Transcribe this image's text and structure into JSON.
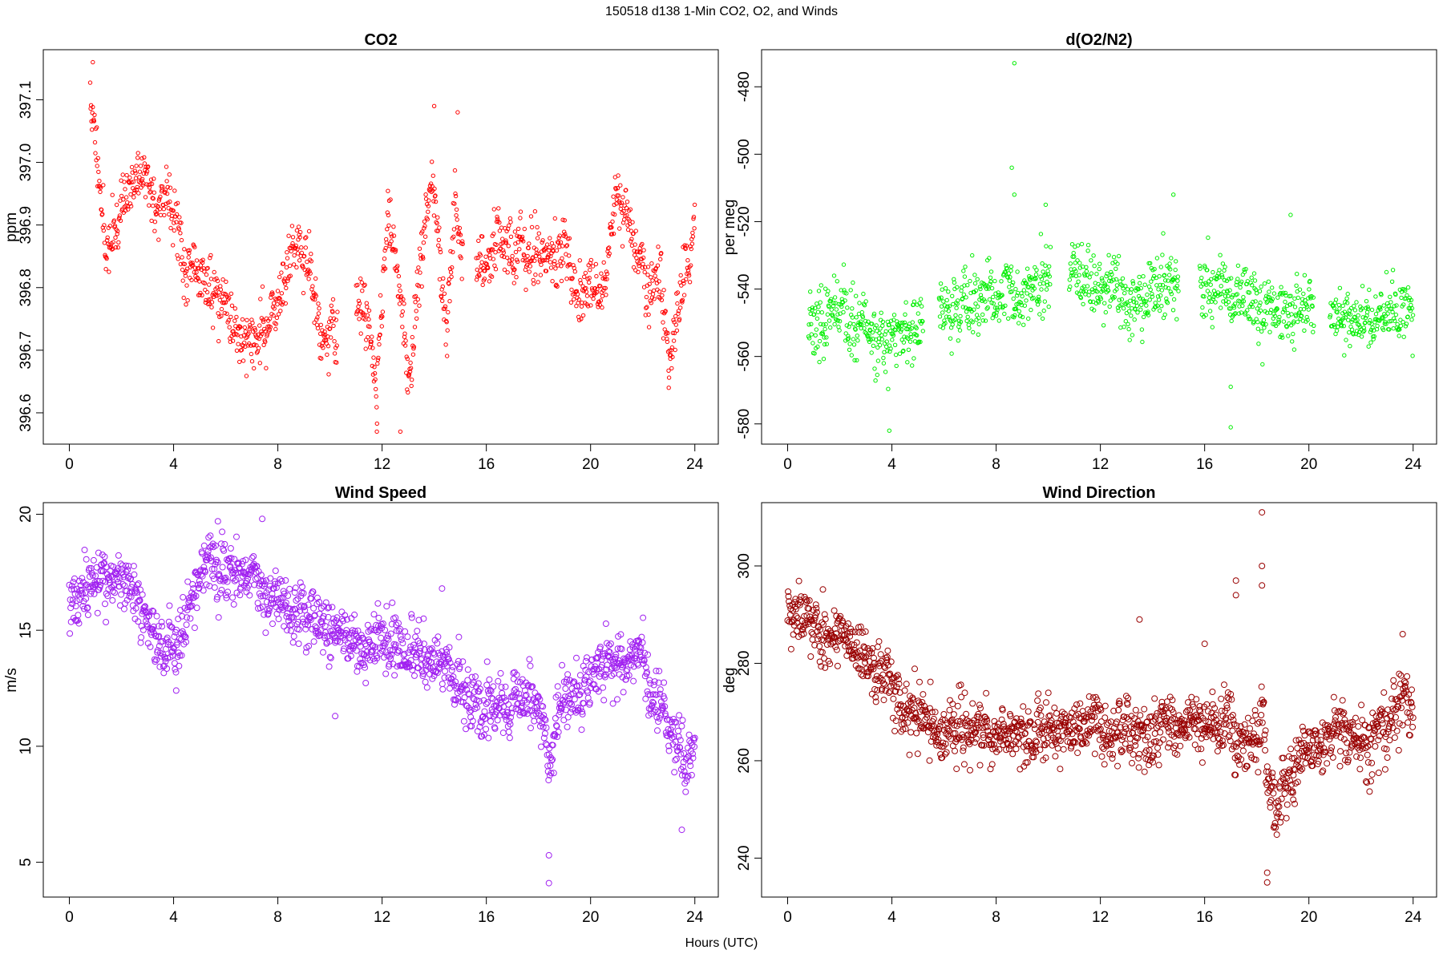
{
  "figure": {
    "title": "150518   d138   1-Min CO2, O2, and Winds",
    "xlabel": "Hours (UTC)"
  },
  "chart_data": [
    {
      "type": "scatter",
      "title": "CO2",
      "xlabel": "",
      "ylabel": "ppm",
      "xlim": [
        -1,
        24.9
      ],
      "ylim": [
        396.55,
        397.18
      ],
      "xticks": [
        0,
        4,
        8,
        12,
        16,
        20,
        24
      ],
      "yticks": [
        396.6,
        396.7,
        396.8,
        396.9,
        397.0,
        397.1
      ],
      "ytick_labels": [
        "396.6",
        "396.7",
        "396.8",
        "396.9",
        "397.0",
        "397.1"
      ],
      "color": "#ff0000",
      "gaps": [
        [
          10.3,
          11.0
        ],
        [
          15.1,
          15.6
        ]
      ],
      "trend": [
        [
          0.8,
          397.1
        ],
        [
          1.2,
          396.97
        ],
        [
          1.4,
          396.85
        ],
        [
          1.8,
          396.9
        ],
        [
          2.2,
          396.95
        ],
        [
          2.8,
          396.99
        ],
        [
          3.3,
          396.92
        ],
        [
          3.8,
          396.96
        ],
        [
          4.2,
          396.9
        ],
        [
          4.5,
          396.81
        ],
        [
          5.0,
          396.83
        ],
        [
          5.6,
          396.79
        ],
        [
          6.0,
          396.77
        ],
        [
          6.5,
          396.73
        ],
        [
          7.0,
          396.71
        ],
        [
          7.5,
          396.73
        ],
        [
          8.0,
          396.78
        ],
        [
          8.4,
          396.83
        ],
        [
          8.8,
          396.88
        ],
        [
          9.2,
          396.82
        ],
        [
          9.6,
          396.74
        ],
        [
          10.2,
          396.71
        ],
        [
          11.0,
          396.78
        ],
        [
          11.5,
          396.76
        ],
        [
          11.8,
          396.63
        ],
        [
          12.2,
          396.92
        ],
        [
          12.6,
          396.82
        ],
        [
          13.0,
          396.63
        ],
        [
          13.5,
          396.86
        ],
        [
          13.9,
          396.98
        ],
        [
          14.2,
          396.85
        ],
        [
          14.5,
          396.7
        ],
        [
          14.8,
          396.96
        ],
        [
          15.0,
          396.88
        ],
        [
          15.8,
          396.82
        ],
        [
          16.3,
          396.88
        ],
        [
          17.0,
          396.87
        ],
        [
          17.8,
          396.86
        ],
        [
          18.5,
          396.84
        ],
        [
          19.0,
          396.87
        ],
        [
          19.5,
          396.78
        ],
        [
          20.0,
          396.8
        ],
        [
          20.5,
          396.78
        ],
        [
          21.0,
          396.95
        ],
        [
          21.4,
          396.92
        ],
        [
          21.8,
          396.86
        ],
        [
          22.2,
          396.8
        ],
        [
          22.7,
          396.79
        ],
        [
          23.0,
          396.7
        ],
        [
          23.4,
          396.79
        ],
        [
          23.8,
          396.83
        ],
        [
          24.0,
          396.92
        ]
      ],
      "noise": 0.03,
      "outliers": [
        [
          0.9,
          397.16
        ],
        [
          11.8,
          396.57
        ],
        [
          12.7,
          396.57
        ],
        [
          14.0,
          397.09
        ],
        [
          14.9,
          397.08
        ],
        [
          23.0,
          396.64
        ]
      ],
      "seed": 11,
      "spacing": 0.0167,
      "marker_r": 2.2
    },
    {
      "type": "scatter",
      "title": "d(O2/N2)",
      "xlabel": "",
      "ylabel": "per meg",
      "xlim": [
        -1,
        24.9
      ],
      "ylim": [
        -586,
        -469
      ],
      "xticks": [
        0,
        4,
        8,
        12,
        16,
        20,
        24
      ],
      "yticks": [
        -580,
        -560,
        -540,
        -520,
        -500,
        -480
      ],
      "ytick_labels": [
        "-580",
        "-560",
        "-540",
        "-520",
        "-500",
        "-480"
      ],
      "color": "#00ee00",
      "gaps": [
        [
          5.2,
          5.8
        ],
        [
          10.1,
          10.8
        ],
        [
          15.0,
          15.8
        ],
        [
          20.2,
          20.8
        ]
      ],
      "trend": [
        [
          0.8,
          -548
        ],
        [
          2.0,
          -550
        ],
        [
          3.0,
          -553
        ],
        [
          4.0,
          -555
        ],
        [
          5.0,
          -552
        ],
        [
          6.0,
          -546
        ],
        [
          7.0,
          -544
        ],
        [
          8.0,
          -544
        ],
        [
          9.0,
          -542
        ],
        [
          10.0,
          -540
        ],
        [
          11.0,
          -539
        ],
        [
          12.0,
          -540
        ],
        [
          13.0,
          -542
        ],
        [
          14.0,
          -541
        ],
        [
          15.0,
          -540
        ],
        [
          16.0,
          -541
        ],
        [
          17.0,
          -542
        ],
        [
          18.0,
          -544
        ],
        [
          19.0,
          -545
        ],
        [
          20.0,
          -544
        ],
        [
          21.0,
          -547
        ],
        [
          22.0,
          -550
        ],
        [
          23.0,
          -548
        ],
        [
          24.0,
          -546
        ]
      ],
      "noise": 6,
      "outliers": [
        [
          8.7,
          -473
        ],
        [
          8.6,
          -504
        ],
        [
          8.7,
          -512
        ],
        [
          9.9,
          -515
        ],
        [
          14.8,
          -512
        ],
        [
          3.9,
          -582
        ],
        [
          17.0,
          -581
        ],
        [
          17.0,
          -569
        ],
        [
          19.3,
          -518
        ]
      ],
      "seed": 23,
      "spacing": 0.0167,
      "marker_r": 2.2
    },
    {
      "type": "scatter",
      "title": "Wind Speed",
      "xlabel": "",
      "ylabel": "m/s",
      "xlim": [
        -1,
        24.9
      ],
      "ylim": [
        3.5,
        20.5
      ],
      "xticks": [
        0,
        4,
        8,
        12,
        16,
        20,
        24
      ],
      "yticks": [
        5,
        10,
        15,
        20
      ],
      "ytick_labels": [
        "5",
        "10",
        "15",
        "20"
      ],
      "color": "#a020f0",
      "gaps": [],
      "trend": [
        [
          0.0,
          16.0
        ],
        [
          0.5,
          16.5
        ],
        [
          1.0,
          17.6
        ],
        [
          2.0,
          17.0
        ],
        [
          2.5,
          16.2
        ],
        [
          3.0,
          15.2
        ],
        [
          3.5,
          14.4
        ],
        [
          4.0,
          14.2
        ],
        [
          4.5,
          16.0
        ],
        [
          5.0,
          17.5
        ],
        [
          6.0,
          17.8
        ],
        [
          7.0,
          17.5
        ],
        [
          8.0,
          16.3
        ],
        [
          9.0,
          15.8
        ],
        [
          10.0,
          14.8
        ],
        [
          11.0,
          14.5
        ],
        [
          12.0,
          14.5
        ],
        [
          13.0,
          14.0
        ],
        [
          14.0,
          13.8
        ],
        [
          15.0,
          12.7
        ],
        [
          15.5,
          11.4
        ],
        [
          16.5,
          11.2
        ],
        [
          17.0,
          11.8
        ],
        [
          17.8,
          12.3
        ],
        [
          18.2,
          11.2
        ],
        [
          18.4,
          8.5
        ],
        [
          18.7,
          11.0
        ],
        [
          19.0,
          12.5
        ],
        [
          20.0,
          12.4
        ],
        [
          20.6,
          14.0
        ],
        [
          21.0,
          13.3
        ],
        [
          21.5,
          14.0
        ],
        [
          22.0,
          13.6
        ],
        [
          22.5,
          11.5
        ],
        [
          23.0,
          10.8
        ],
        [
          23.5,
          9.0
        ],
        [
          24.0,
          10.5
        ]
      ],
      "noise": 0.8,
      "outliers": [
        [
          18.4,
          4.1
        ],
        [
          18.4,
          5.3
        ],
        [
          7.4,
          19.8
        ],
        [
          5.7,
          19.7
        ],
        [
          23.5,
          6.4
        ],
        [
          14.3,
          16.8
        ],
        [
          10.2,
          11.3
        ],
        [
          4.1,
          12.4
        ]
      ],
      "seed": 37,
      "spacing": 0.0167,
      "marker_r": 3.5
    },
    {
      "type": "scatter",
      "title": "Wind Direction",
      "xlabel": "",
      "ylabel": "deg",
      "xlim": [
        -1,
        24.9
      ],
      "ylim": [
        232,
        313
      ],
      "xticks": [
        0,
        4,
        8,
        12,
        16,
        20,
        24
      ],
      "yticks": [
        240,
        260,
        280,
        300
      ],
      "ytick_labels": [
        "240",
        "260",
        "280",
        "300"
      ],
      "color": "#990000",
      "gaps": [],
      "trend": [
        [
          0.0,
          292
        ],
        [
          0.7,
          290
        ],
        [
          1.2,
          286
        ],
        [
          2.0,
          287
        ],
        [
          2.5,
          282
        ],
        [
          3.3,
          279
        ],
        [
          4.0,
          276
        ],
        [
          4.5,
          272
        ],
        [
          5.0,
          270
        ],
        [
          6.0,
          266
        ],
        [
          7.0,
          266
        ],
        [
          8.0,
          266
        ],
        [
          9.0,
          266
        ],
        [
          10.0,
          266
        ],
        [
          11.0,
          267
        ],
        [
          12.0,
          267
        ],
        [
          13.0,
          266
        ],
        [
          14.0,
          266
        ],
        [
          15.0,
          267
        ],
        [
          16.0,
          266
        ],
        [
          17.0,
          268
        ],
        [
          17.5,
          265
        ],
        [
          18.0,
          263
        ],
        [
          18.2,
          272
        ],
        [
          18.4,
          258
        ],
        [
          18.7,
          249
        ],
        [
          19.2,
          255
        ],
        [
          19.8,
          262
        ],
        [
          20.5,
          264
        ],
        [
          21.0,
          266
        ],
        [
          22.0,
          264
        ],
        [
          22.8,
          266
        ],
        [
          23.3,
          268
        ],
        [
          23.7,
          277
        ],
        [
          24.0,
          271
        ]
      ],
      "noise": 4,
      "outliers": [
        [
          18.2,
          311
        ],
        [
          18.2,
          300
        ],
        [
          18.2,
          296
        ],
        [
          17.2,
          297
        ],
        [
          17.2,
          294
        ],
        [
          18.4,
          235
        ],
        [
          18.4,
          237
        ],
        [
          13.5,
          289
        ],
        [
          16.0,
          284
        ],
        [
          19.4,
          252
        ],
        [
          23.6,
          286
        ]
      ],
      "seed": 53,
      "spacing": 0.0167,
      "marker_r": 3.5
    }
  ]
}
